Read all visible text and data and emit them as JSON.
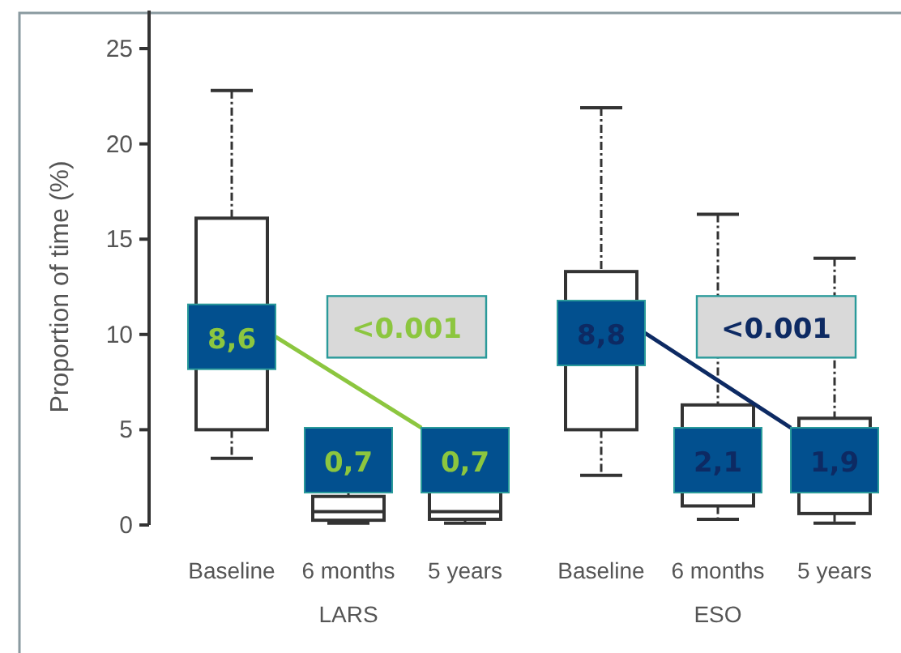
{
  "chart_data": {
    "type": "box",
    "ylabel": "Proportion of time (%)",
    "categories": [
      "Baseline",
      "6 months",
      "5 years",
      "Baseline",
      "6 months",
      "5 years"
    ],
    "ylim": [
      0,
      27
    ],
    "yticks": [
      0,
      5,
      10,
      15,
      20,
      25
    ],
    "series": [
      {
        "color": "#333333",
        "value_labels": [
          "8,6",
          "0,7",
          "0,7",
          null,
          null,
          null
        ],
        "boxes": [
          {
            "low": 3.5,
            "q1": 5.0,
            "median": 8.6,
            "q3": 16.1,
            "high": 22.8
          },
          {
            "low": 0.1,
            "q1": 0.25,
            "median": 0.7,
            "q3": 1.5,
            "high": 1.8
          },
          {
            "low": 0.1,
            "q1": 0.3,
            "median": 0.7,
            "q3": 1.8,
            "high": 4.5
          },
          null,
          null,
          null
        ]
      },
      {
        "color": "#333333",
        "value_labels": [
          null,
          null,
          null,
          "8,8",
          "2,1",
          "1,9"
        ],
        "boxes": [
          null,
          null,
          null,
          {
            "low": 2.6,
            "q1": 5.0,
            "median": 8.8,
            "q3": 13.3,
            "high": 21.9
          },
          {
            "low": 0.3,
            "q1": 1.0,
            "median": 2.1,
            "q3": 6.3,
            "high": 16.3
          },
          {
            "low": 0.1,
            "q1": 0.6,
            "median": 1.9,
            "q3": 5.6,
            "high": 14.0
          }
        ]
      }
    ],
    "annotations": [
      "LARS",
      "ESO",
      "<0.001",
      "<0.001"
    ]
  }
}
